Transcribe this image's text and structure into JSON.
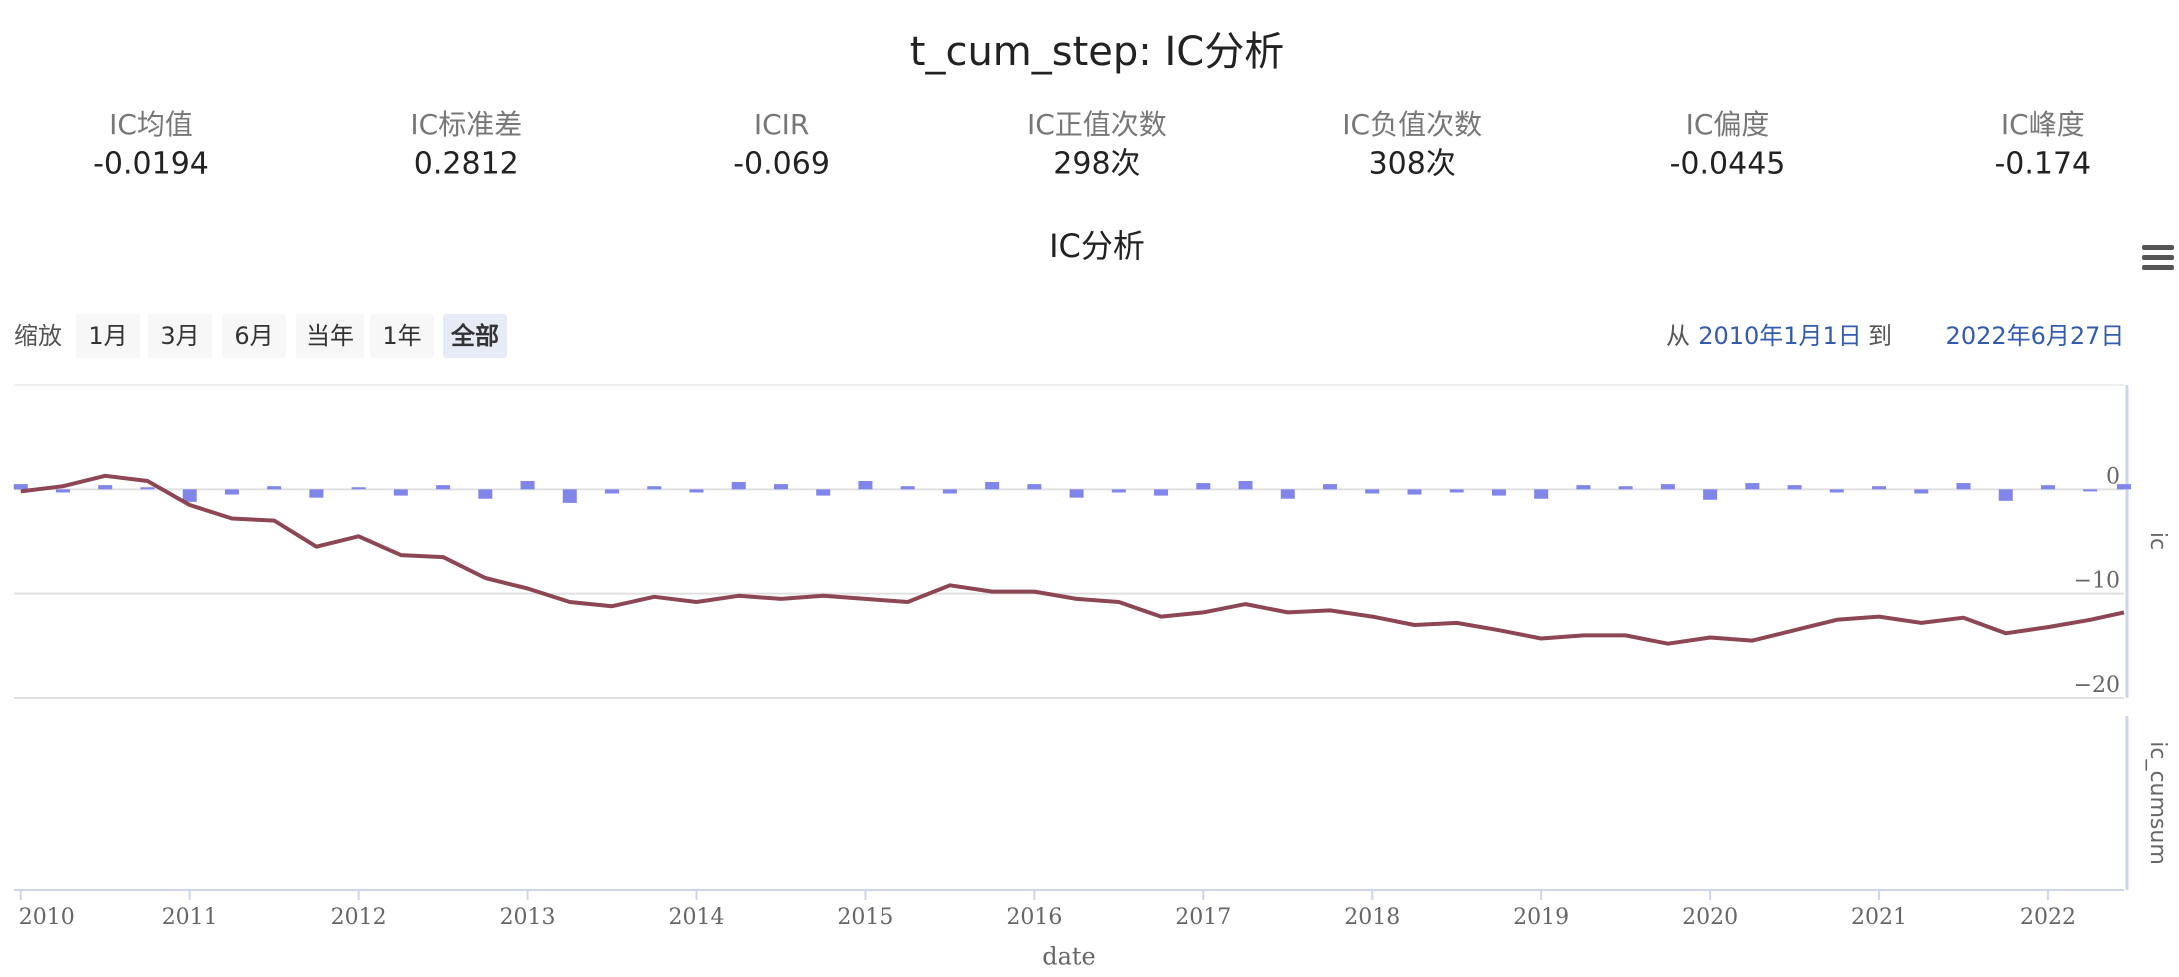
{
  "header": {
    "title": "t_cum_step: IC分析"
  },
  "stats": [
    {
      "label": "IC均值",
      "value": "-0.0194"
    },
    {
      "label": "IC标准差",
      "value": "0.2812"
    },
    {
      "label": "ICIR",
      "value": "-0.069"
    },
    {
      "label": "IC正值次数",
      "value": "298次"
    },
    {
      "label": "IC负值次数",
      "value": "308次"
    },
    {
      "label": "IC偏度",
      "value": "-0.0445"
    },
    {
      "label": "IC峰度",
      "value": "-0.174"
    }
  ],
  "range_selector": {
    "label": "缩放",
    "buttons": [
      "1月",
      "3月",
      "6月",
      "当年",
      "1年",
      "全部"
    ],
    "from_label": "从",
    "from": "2010年1月1日",
    "to_label": "到",
    "to": "2022年6月27日"
  },
  "chart_data": {
    "type": "line",
    "title": "IC分析",
    "x_label": "date",
    "x": [
      2010.0,
      2010.25,
      2010.5,
      2010.75,
      2011.0,
      2011.25,
      2011.5,
      2011.75,
      2012.0,
      2012.25,
      2012.5,
      2012.75,
      2013.0,
      2013.25,
      2013.5,
      2013.75,
      2014.0,
      2014.25,
      2014.5,
      2014.75,
      2015.0,
      2015.25,
      2015.5,
      2015.75,
      2016.0,
      2016.25,
      2016.5,
      2016.75,
      2017.0,
      2017.25,
      2017.5,
      2017.75,
      2018.0,
      2018.25,
      2018.5,
      2018.75,
      2019.0,
      2019.25,
      2019.5,
      2019.75,
      2020.0,
      2020.25,
      2020.5,
      2020.75,
      2021.0,
      2021.25,
      2021.5,
      2021.75,
      2022.0,
      2022.25,
      2022.45
    ],
    "series": [
      {
        "name": "ic",
        "type": "bar",
        "color": "#8085e9",
        "values": [
          0.5,
          -0.3,
          0.4,
          0.2,
          -1.2,
          -0.5,
          0.3,
          -0.8,
          0.2,
          -0.6,
          0.4,
          -0.9,
          0.8,
          -1.3,
          -0.4,
          0.3,
          -0.3,
          0.7,
          0.5,
          -0.6,
          0.8,
          0.3,
          -0.4,
          0.7,
          0.5,
          -0.8,
          -0.3,
          -0.6,
          0.6,
          0.8,
          -0.9,
          0.5,
          -0.4,
          -0.5,
          -0.3,
          -0.6,
          -0.9,
          0.4,
          0.3,
          0.5,
          -1.0,
          0.6,
          0.4,
          -0.3,
          0.3,
          -0.4,
          0.6,
          -1.1,
          0.4,
          -0.2,
          0.5
        ]
      },
      {
        "name": "ic_cumsum",
        "type": "line",
        "color": "#8d4654",
        "values": [
          -0.2,
          0.3,
          1.3,
          0.8,
          -1.5,
          -2.8,
          -3.0,
          -5.5,
          -4.5,
          -6.3,
          -6.5,
          -8.5,
          -9.5,
          -10.8,
          -11.2,
          -10.3,
          -10.8,
          -10.2,
          -10.5,
          -10.2,
          -10.5,
          -10.8,
          -9.2,
          -9.8,
          -9.8,
          -10.5,
          -10.8,
          -12.2,
          -11.8,
          -11.0,
          -11.8,
          -11.6,
          -12.2,
          -13.0,
          -12.8,
          -13.5,
          -14.3,
          -14.0,
          -14.0,
          -14.8,
          -14.2,
          -14.5,
          -13.5,
          -12.5,
          -12.2,
          -12.8,
          -12.3,
          -13.8,
          -13.2,
          -12.5,
          -11.8
        ]
      }
    ],
    "xlim": [
      2009.96,
      2022.45
    ],
    "xticks": [
      2010,
      2011,
      2012,
      2013,
      2014,
      2015,
      2016,
      2017,
      2018,
      2019,
      2020,
      2021,
      2022
    ],
    "ylim": [
      -20,
      10
    ],
    "yticks": [
      {
        "value": -20,
        "label": "−20"
      },
      {
        "value": -10,
        "label": "−10"
      },
      0
    ],
    "grid": true
  }
}
